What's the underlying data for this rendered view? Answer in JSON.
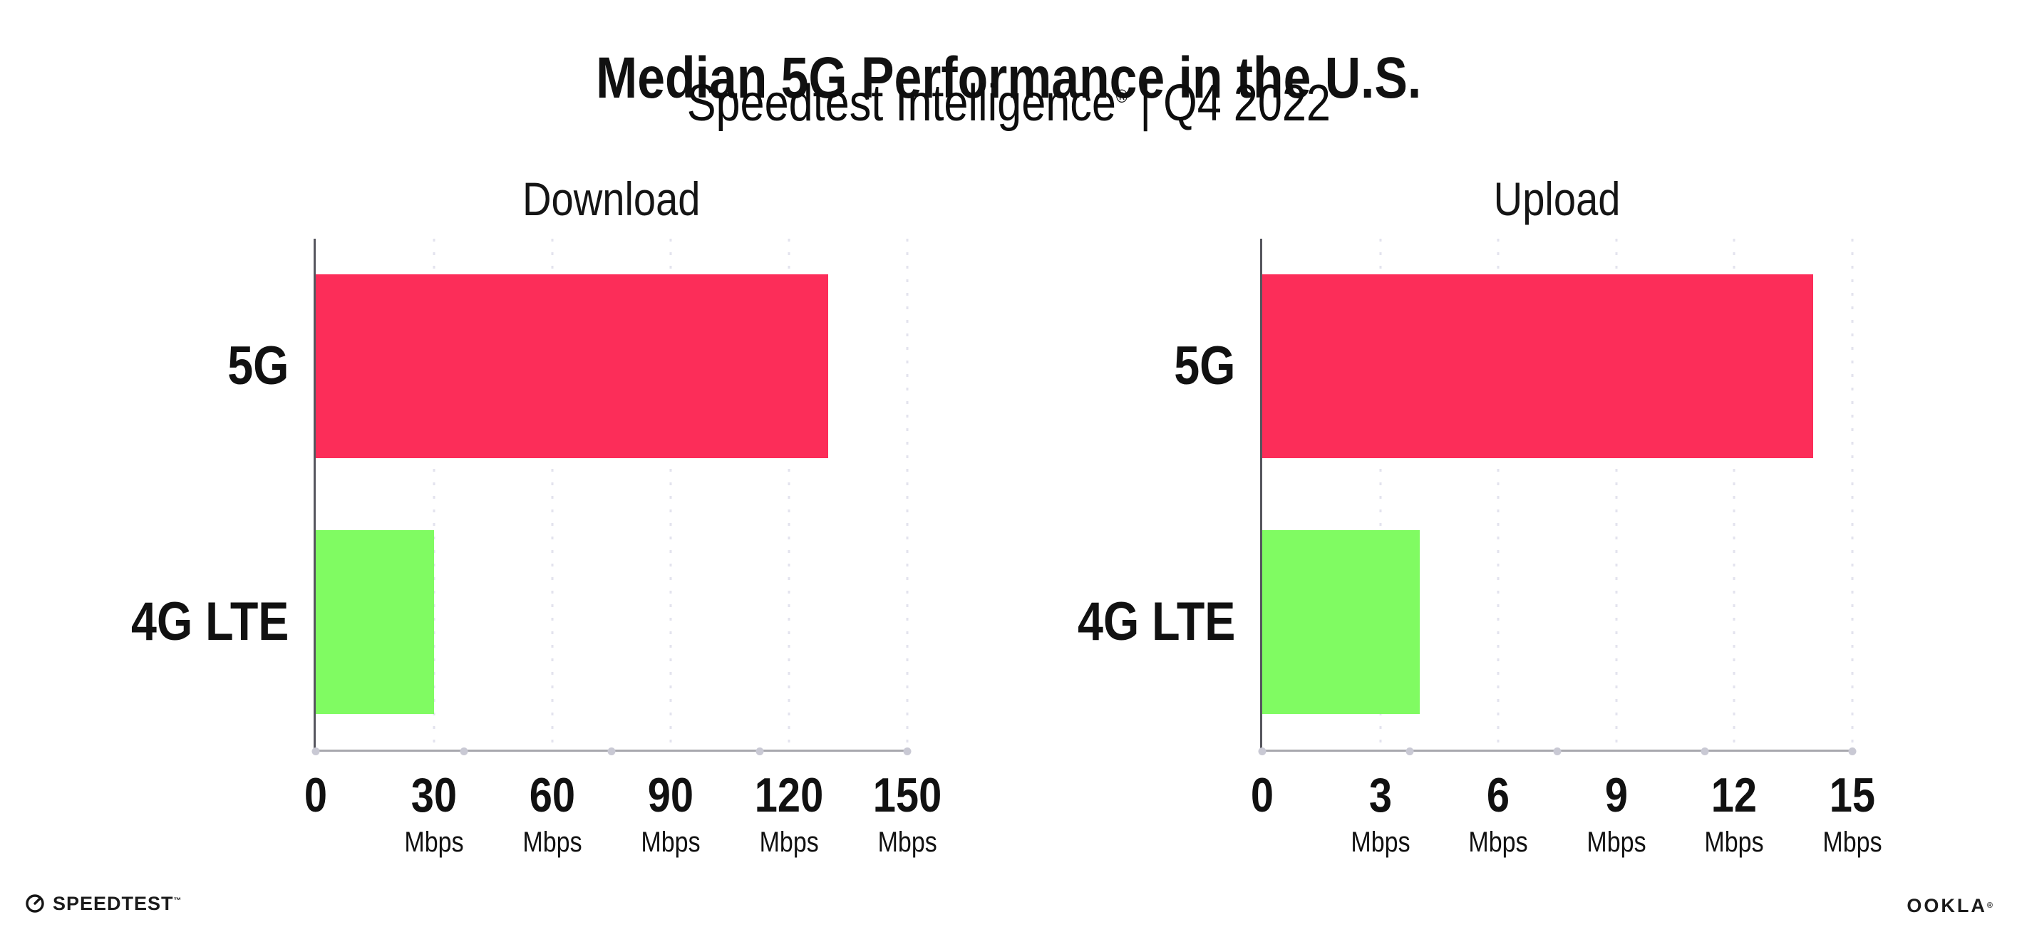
{
  "header": {
    "title": "Median 5G Performance in the U.S.",
    "subtitle_brand": "Speedtest Intelligence",
    "subtitle_reg": "®",
    "subtitle_rest": " | Q4 2022"
  },
  "chart_data": [
    {
      "type": "bar",
      "orientation": "horizontal",
      "title": "Download",
      "categories": [
        "5G",
        "4G LTE"
      ],
      "values": [
        130,
        30
      ],
      "unit": "Mbps",
      "xlabel": "",
      "ylabel": "",
      "xlim": [
        0,
        150
      ],
      "xticks": [
        0,
        30,
        60,
        90,
        120,
        150
      ],
      "xtick_labels": [
        {
          "num": "0",
          "unit": ""
        },
        {
          "num": "30",
          "unit": "Mbps"
        },
        {
          "num": "60",
          "unit": "Mbps"
        },
        {
          "num": "90",
          "unit": "Mbps"
        },
        {
          "num": "120",
          "unit": "Mbps"
        },
        {
          "num": "150",
          "unit": "Mbps"
        }
      ],
      "grid": "vertical-dotted",
      "legend": "none",
      "bar_colors": [
        "#fc2d59",
        "#80fb62"
      ]
    },
    {
      "type": "bar",
      "orientation": "horizontal",
      "title": "Upload",
      "categories": [
        "5G",
        "4G LTE"
      ],
      "values": [
        14,
        4
      ],
      "unit": "Mbps",
      "xlabel": "",
      "ylabel": "",
      "xlim": [
        0,
        15
      ],
      "xticks": [
        0,
        3,
        6,
        9,
        12,
        15
      ],
      "xtick_labels": [
        {
          "num": "0",
          "unit": ""
        },
        {
          "num": "3",
          "unit": "Mbps"
        },
        {
          "num": "6",
          "unit": "Mbps"
        },
        {
          "num": "9",
          "unit": "Mbps"
        },
        {
          "num": "12",
          "unit": "Mbps"
        },
        {
          "num": "15",
          "unit": "Mbps"
        }
      ],
      "grid": "vertical-dotted",
      "legend": "none",
      "bar_colors": [
        "#fc2d59",
        "#80fb62"
      ]
    }
  ],
  "footer": {
    "speedtest_label": "SPEEDTEST",
    "speedtest_tm": "™",
    "ookla_label": "OOKLA",
    "ookla_reg": "®"
  },
  "colors": {
    "bar_5g": "#fc2d59",
    "bar_4g_lte": "#80fb62",
    "gridline": "#e3e3ee",
    "axis_y": "#56565e",
    "axis_x": "#a8a8ae",
    "axis_dot": "#c9c9d4",
    "text": "#111111",
    "background": "#ffffff"
  }
}
